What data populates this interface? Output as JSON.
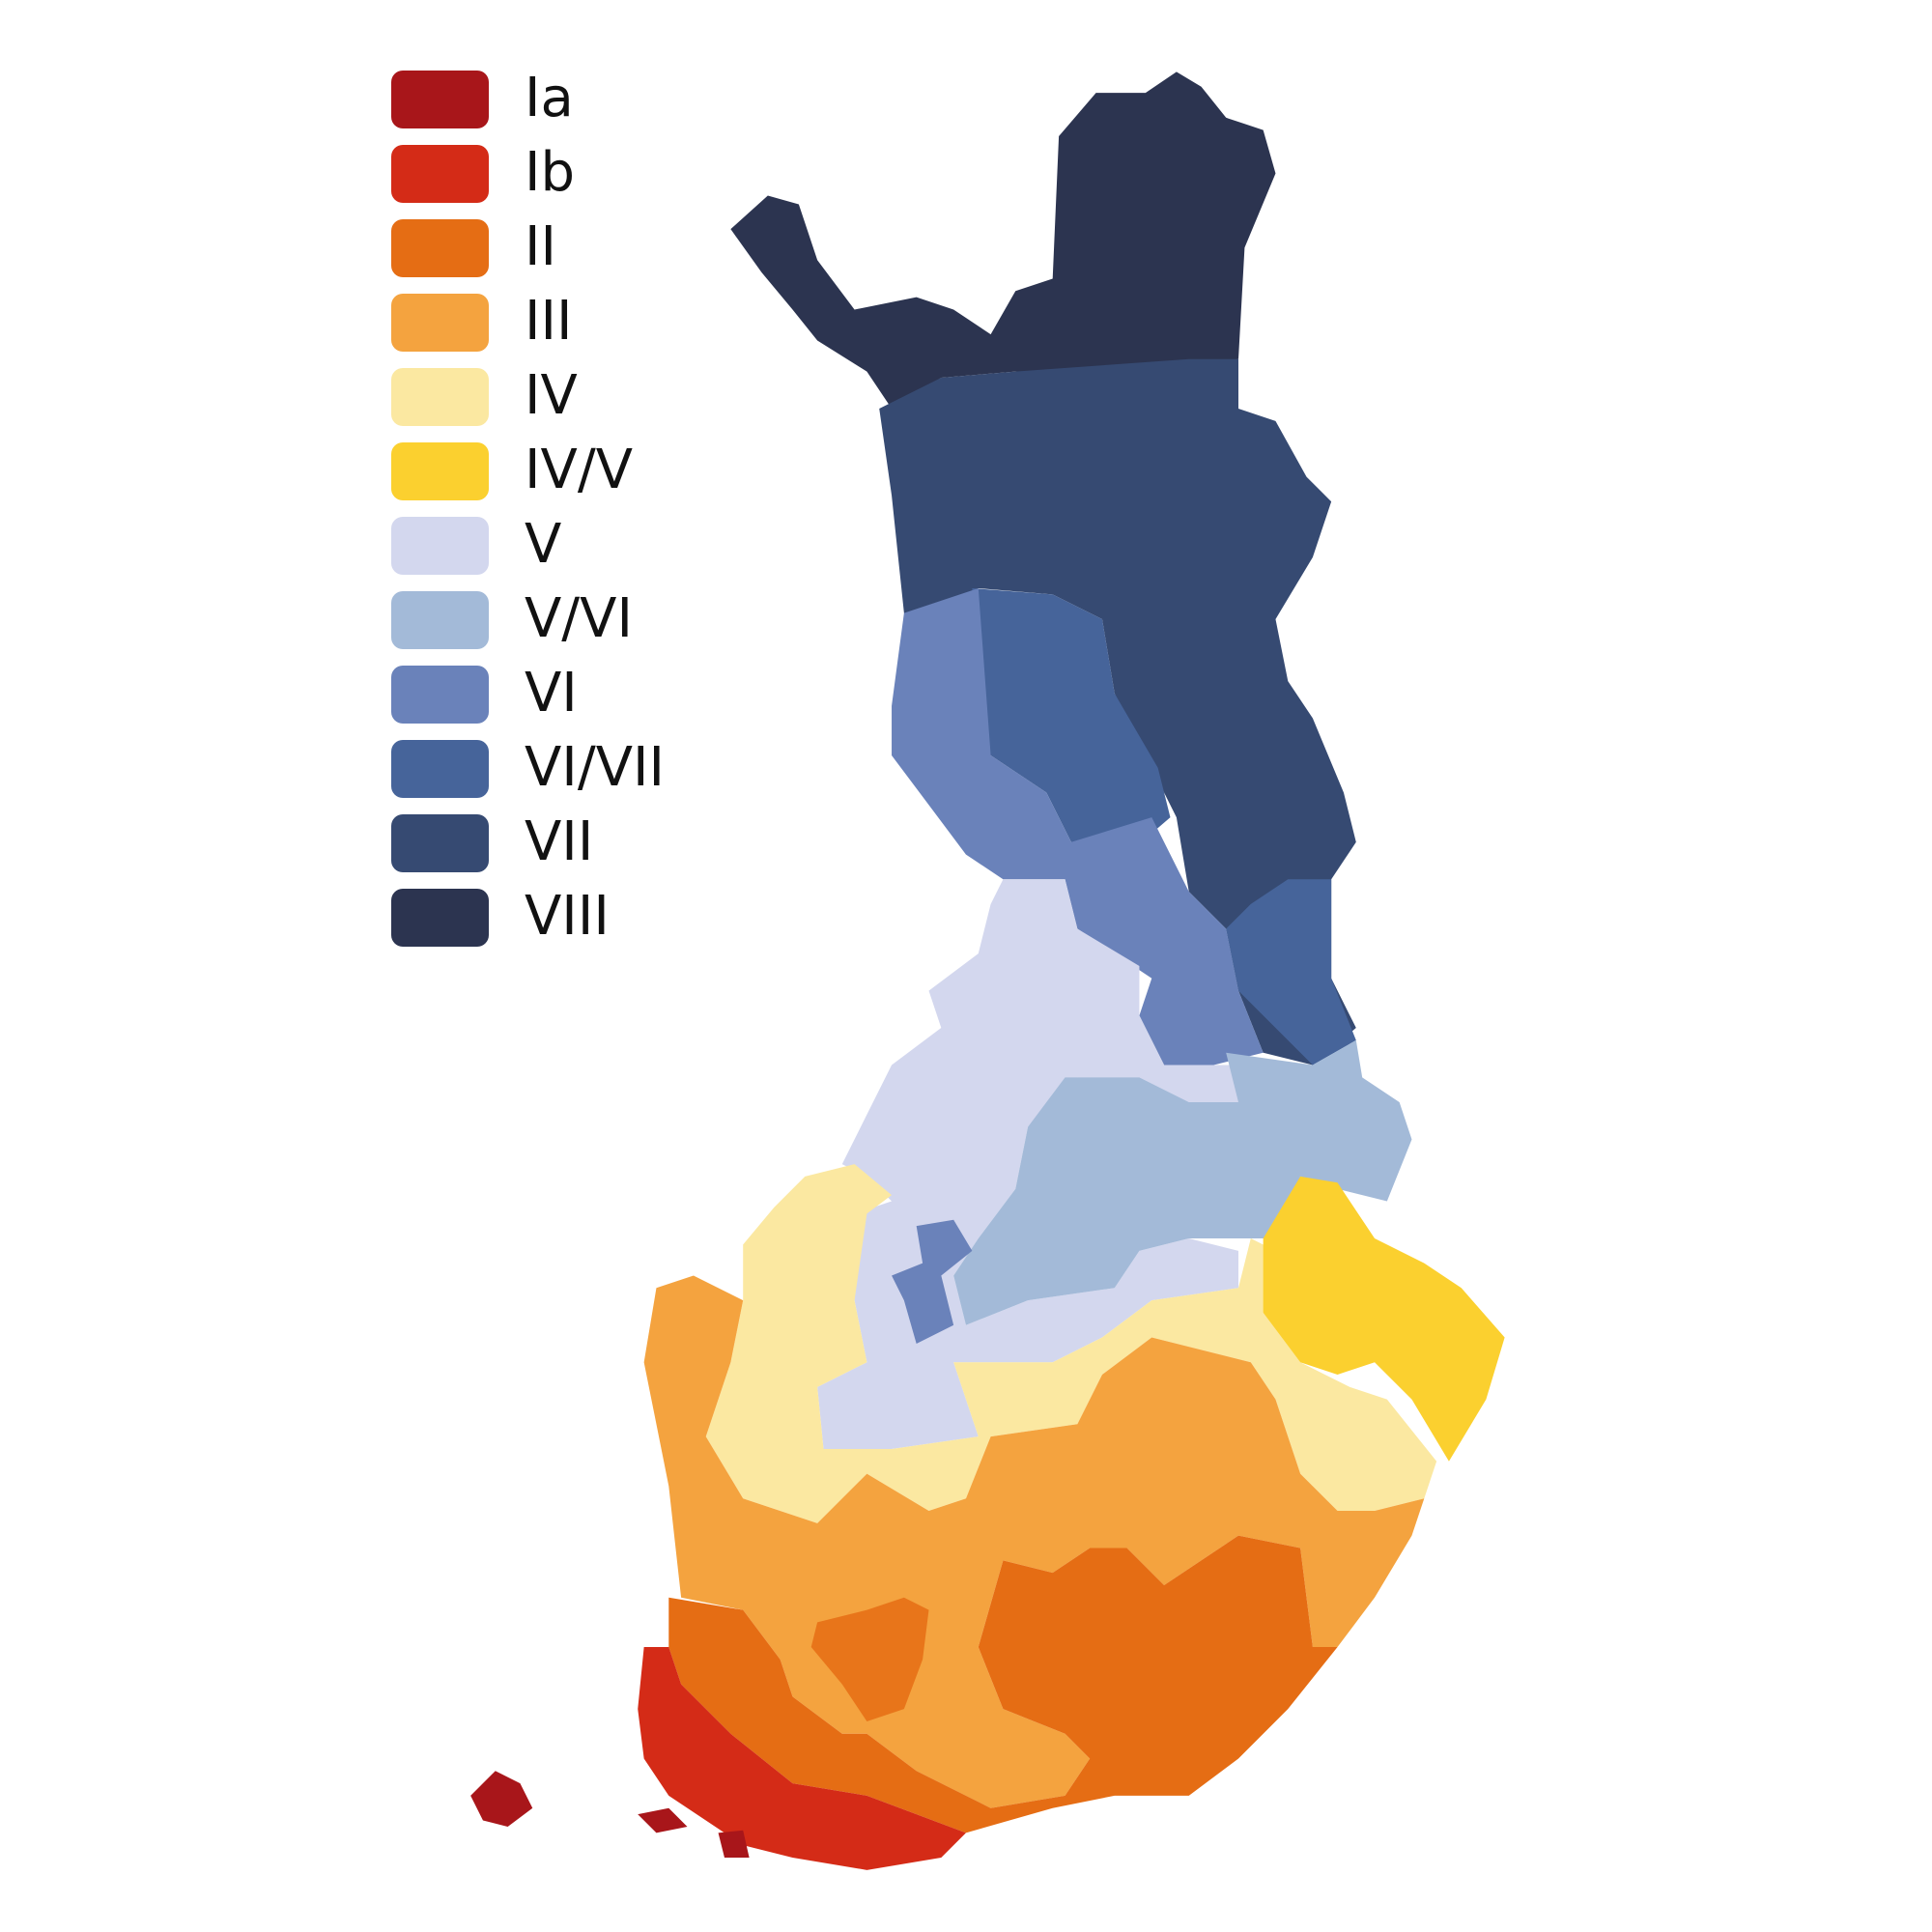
{
  "legend": {
    "items": [
      {
        "label": "Ia",
        "color": "#a8161a"
      },
      {
        "label": "Ib",
        "color": "#d42b17"
      },
      {
        "label": "II",
        "color": "#e56d14"
      },
      {
        "label": "III",
        "color": "#f4a33f"
      },
      {
        "label": "IV",
        "color": "#fbe8a1"
      },
      {
        "label": "IV/V",
        "color": "#fbd02f"
      },
      {
        "label": "V",
        "color": "#d3d7ee"
      },
      {
        "label": "V/VI",
        "color": "#a3bad8"
      },
      {
        "label": "VI",
        "color": "#6a82ba"
      },
      {
        "label": "VI/VII",
        "color": "#46649a"
      },
      {
        "label": "VII",
        "color": "#364a72"
      },
      {
        "label": "VIII",
        "color": "#2c3450"
      }
    ]
  }
}
